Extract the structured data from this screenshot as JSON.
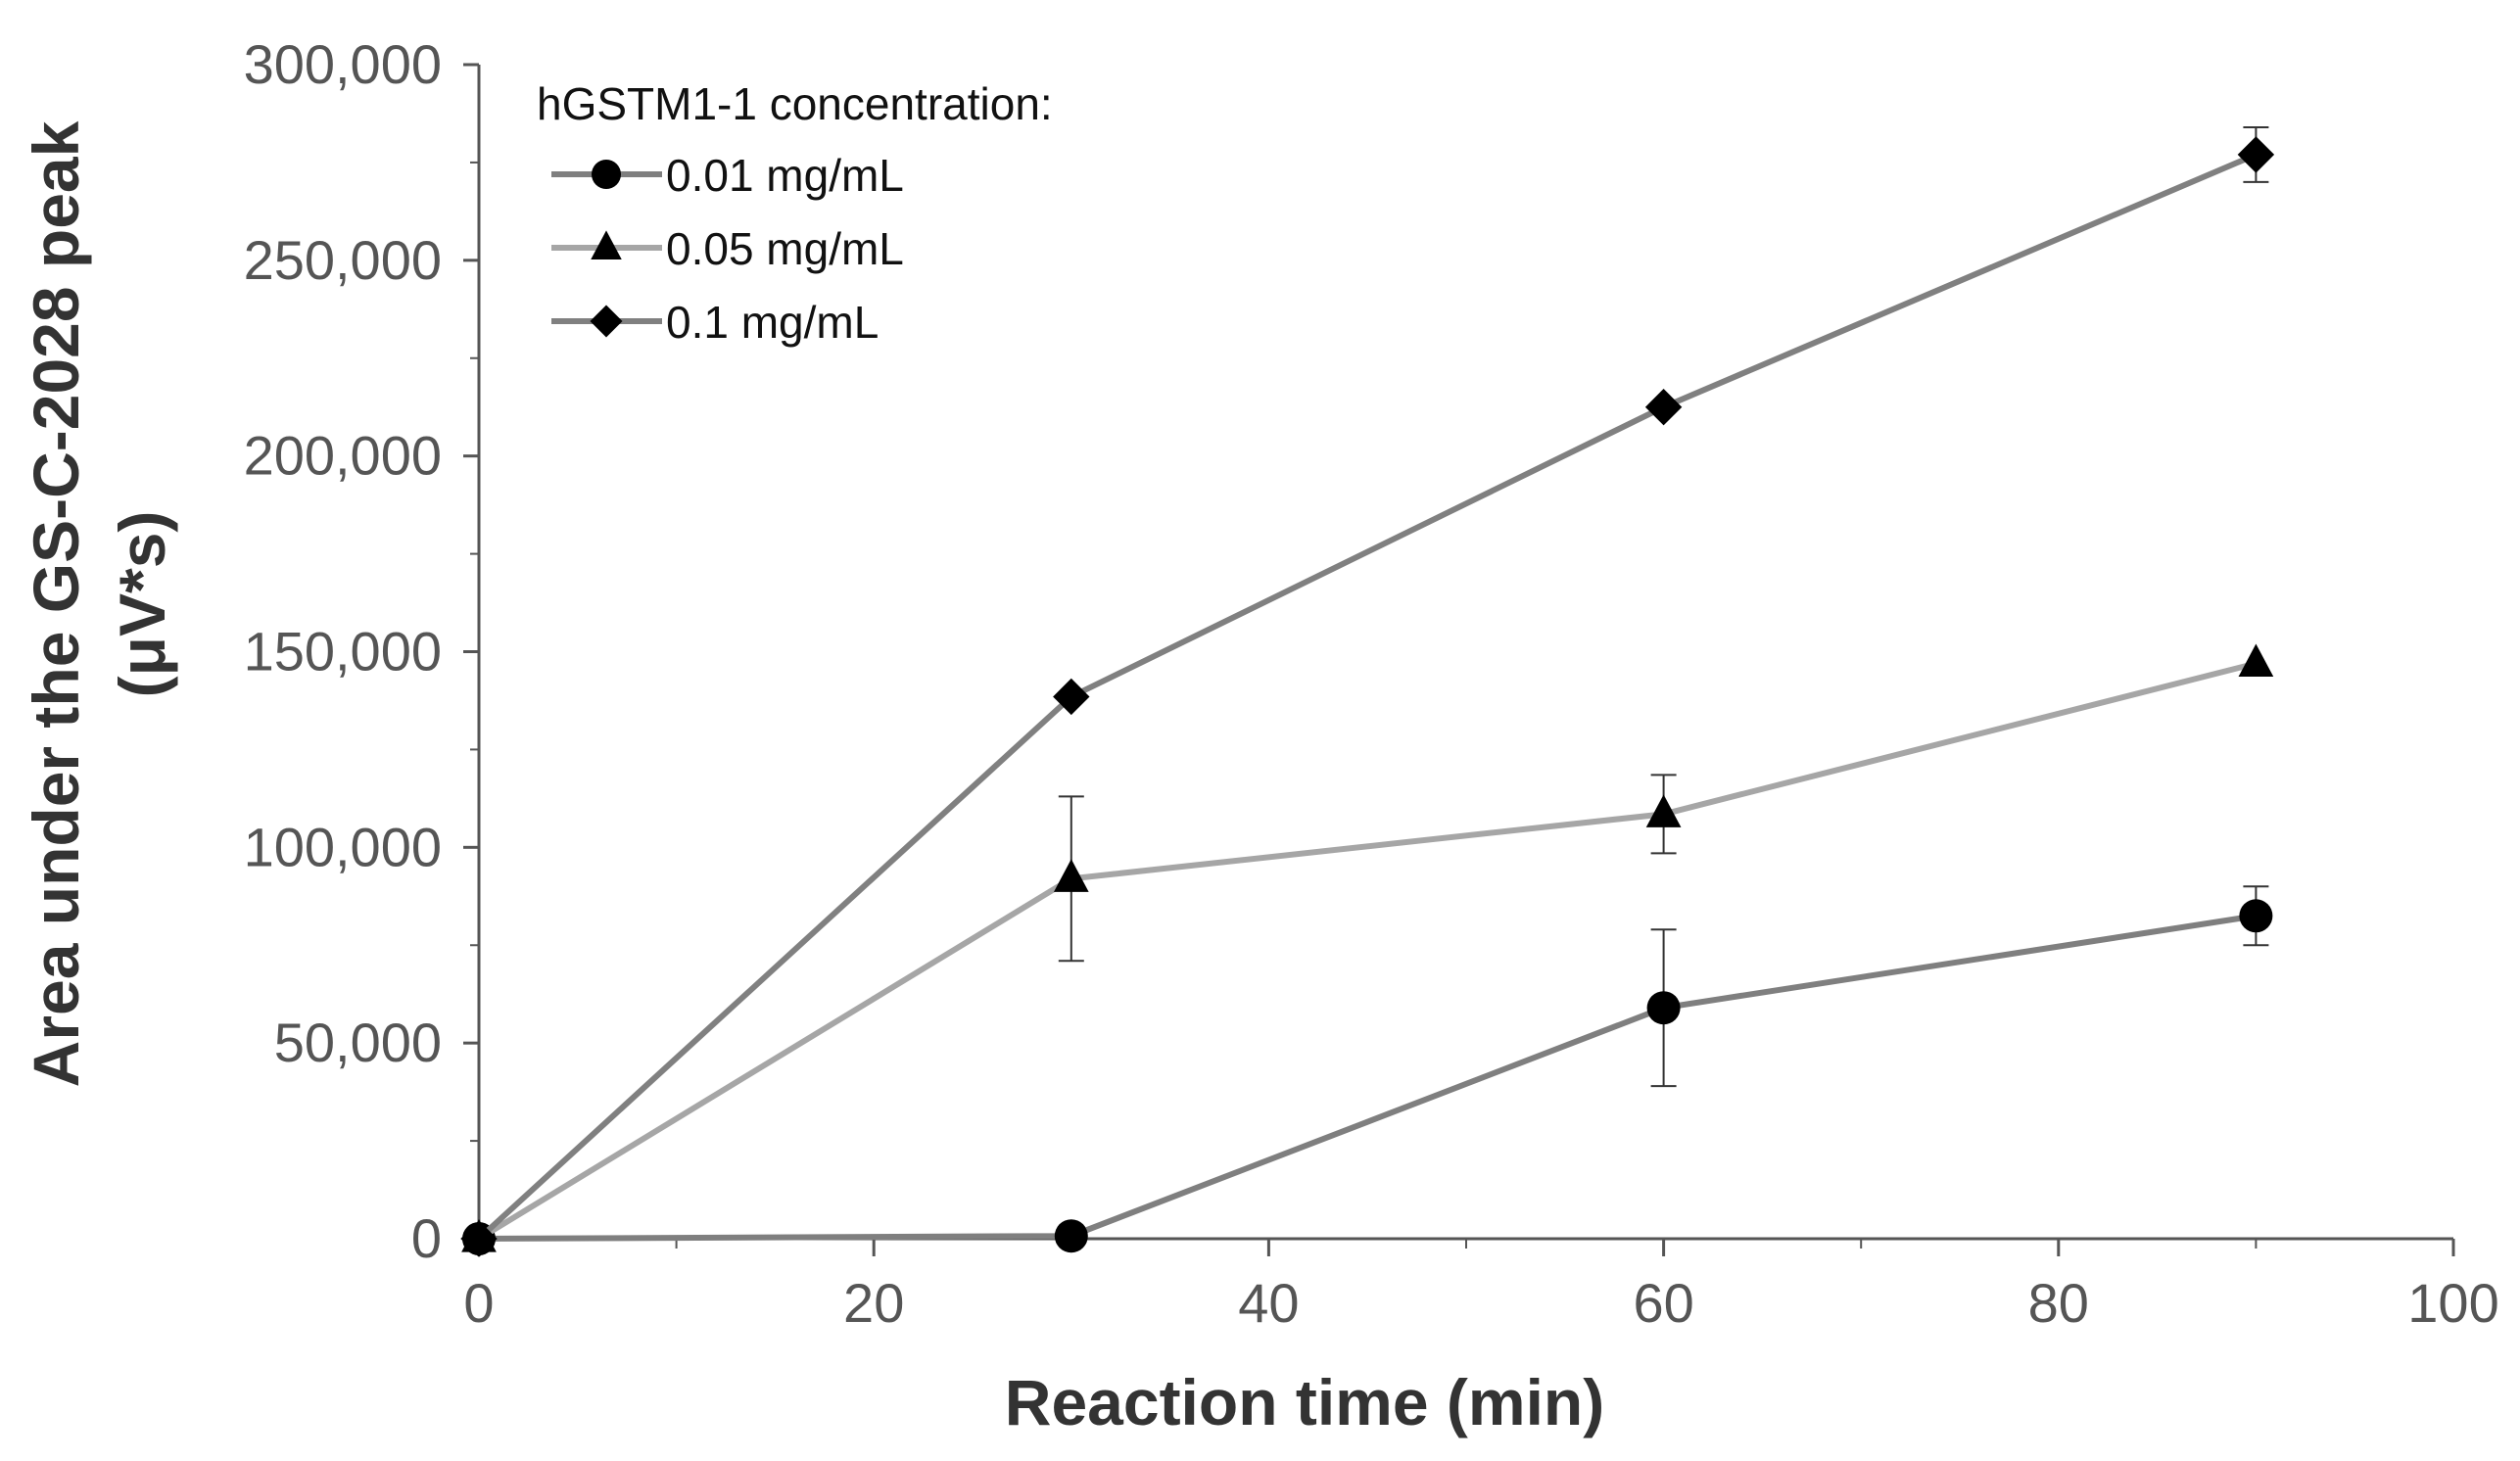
{
  "chart_data": {
    "type": "line",
    "title": "",
    "xlabel": "Reaction time (min)",
    "ylabel_line1": "Area under the GS-C-2028 peak",
    "ylabel_line2": "(μV*s)",
    "xlim": [
      0,
      100
    ],
    "ylim": [
      0,
      300000
    ],
    "x_ticks": [
      0,
      20,
      40,
      60,
      80,
      100
    ],
    "x_tick_labels": [
      "0",
      "20",
      "40",
      "60",
      "80",
      "100"
    ],
    "y_ticks": [
      0,
      50000,
      100000,
      150000,
      200000,
      250000,
      300000
    ],
    "y_tick_labels": [
      "0",
      "50,000",
      "100,000",
      "150,000",
      "200,000",
      "250,000",
      "300,000"
    ],
    "legend_title": "hGSTM1-1 concentration:",
    "legend_position": "top-left",
    "grid": false,
    "series": [
      {
        "name": "0.01 mg/mL",
        "marker": "circle",
        "color": "#7f7f7f",
        "x": [
          0,
          30,
          60,
          90
        ],
        "y": [
          0,
          700,
          59000,
          82500
        ],
        "err": [
          0,
          0,
          20000,
          7500
        ]
      },
      {
        "name": "0.05 mg/mL",
        "marker": "triangle",
        "color": "#a6a6a6",
        "x": [
          0,
          30,
          60,
          90
        ],
        "y": [
          0,
          92000,
          108500,
          147000
        ],
        "err": [
          0,
          21000,
          10000,
          0
        ]
      },
      {
        "name": "0.1 mg/mL",
        "marker": "diamond",
        "color": "#808080",
        "x": [
          0,
          30,
          60,
          90
        ],
        "y": [
          0,
          138500,
          212500,
          277000
        ],
        "err": [
          0,
          0,
          0,
          7000
        ]
      }
    ]
  }
}
